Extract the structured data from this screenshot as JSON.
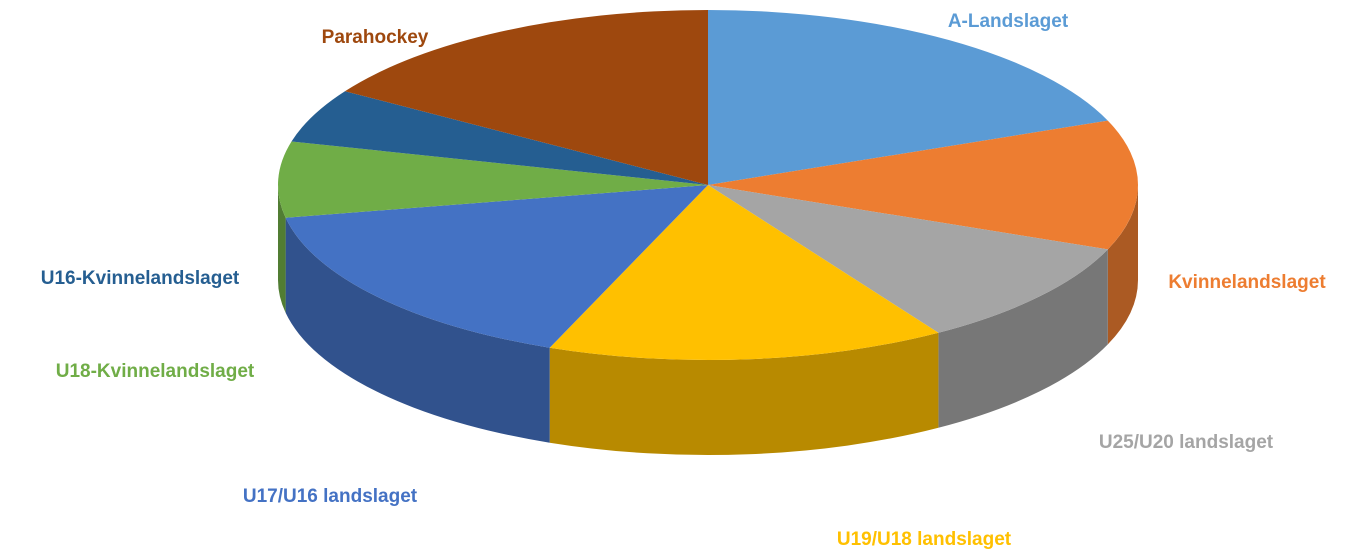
{
  "chart_data": {
    "type": "pie",
    "categories": [
      "A-Landslaget",
      "Kvinnelandslaget",
      "U25/U20 landslaget",
      "U19/U18 landslaget",
      "U17/U16 landslaget",
      "U18-Kvinnelandslaget",
      "U16-Kvinnelandslaget",
      "Parahockey"
    ],
    "values": [
      19,
      12,
      10,
      15,
      16,
      7,
      5,
      16
    ],
    "colors": [
      "#5b9bd5",
      "#ed7d31",
      "#a5a5a5",
      "#ffc000",
      "#4472c4",
      "#70ad47",
      "#255e91",
      "#9e480e"
    ]
  }
}
